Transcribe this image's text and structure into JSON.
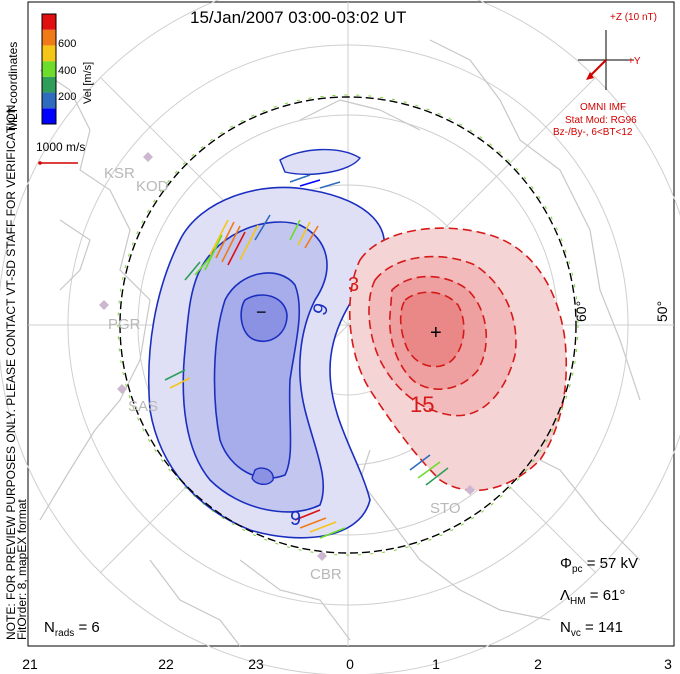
{
  "title": "15/Jan/2007 03:00-03:02 UT",
  "colorbar": {
    "label": "Vel [m/s]",
    "ticks": [
      "600",
      "400",
      "200"
    ],
    "colors": [
      "#0000ff",
      "#2f6bbf",
      "#2e9e5a",
      "#6ddc2a",
      "#f5c518",
      "#f07a18",
      "#e01010"
    ]
  },
  "mlt_note": "MLT coordinates",
  "note_line1": "NOTE: FOR PREVIEW PURPOSES ONLY. PLEASE CONTACT VT-SD STAFF FOR VERIFICATION.",
  "note_line2": "FitOrder: 8, mapEX format",
  "reference_vector": "1000 m/s",
  "imf": {
    "z_label": "+Z (10 nT)",
    "y_label": "+Y",
    "source": "OMNI IMF",
    "model": "Stat Mod: RG96",
    "condition": "Bz-/By-, 6<BT<12"
  },
  "latitude_labels": [
    "60°",
    "50°"
  ],
  "stations": [
    "KSR",
    "KOD",
    "PGR",
    "SAS",
    "CBR",
    "STO"
  ],
  "potential_labels": {
    "minus": "−",
    "plus": "+",
    "neg_contour_a": "9",
    "neg_contour_b": "9",
    "pos_contour_a": "3",
    "pos_contour_b": "15"
  },
  "stats": {
    "phi_symbol": "Φ",
    "phi_sub": "pc",
    "phi_value": "= 57 kV",
    "lambda_symbol": "Λ",
    "lambda_sub": "HM",
    "lambda_value": "= 61°",
    "nvc_symbol": "N",
    "nvc_sub": "vc",
    "nvc_value": "= 141",
    "nrads_symbol": "N",
    "nrads_sub": "rads",
    "nrads_value": "= 6"
  },
  "x_ticks": [
    "21",
    "22",
    "23",
    "0",
    "1",
    "2",
    "3"
  ]
}
